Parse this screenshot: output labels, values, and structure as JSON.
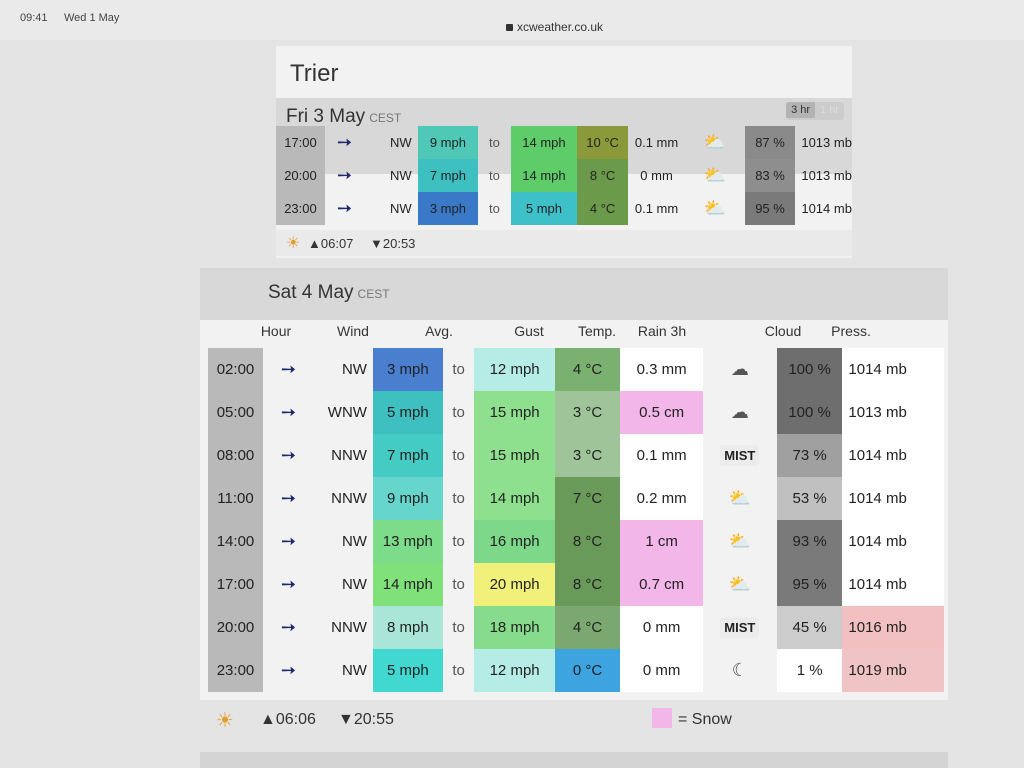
{
  "status": {
    "time": "09:41",
    "date": "Wed 1 May",
    "url": "xcweather.co.uk"
  },
  "city": "Trier",
  "day1": {
    "title": "Fri 3 May",
    "tz": "CEST",
    "toggle": [
      "3 hr",
      "1 hr"
    ],
    "rows": [
      {
        "hour": "17:00",
        "dir": "NW",
        "avg": "9 mph",
        "to": "to",
        "gust": "14 mph",
        "temp": "10 °C",
        "rain": "0.1 mm",
        "icon": "cloud-sun-icon",
        "cloud": "87 %",
        "press": "1013 mb"
      },
      {
        "hour": "20:00",
        "dir": "NW",
        "avg": "7 mph",
        "to": "to",
        "gust": "14 mph",
        "temp": "8 °C",
        "rain": "0 mm",
        "icon": "cloud-sun-icon",
        "cloud": "83 %",
        "press": "1013 mb"
      },
      {
        "hour": "23:00",
        "dir": "NW",
        "avg": "3 mph",
        "to": "to",
        "gust": "5 mph",
        "temp": "4 °C",
        "rain": "0.1 mm",
        "icon": "cloud-sun-icon",
        "cloud": "95 %",
        "press": "1014 mb"
      }
    ],
    "sunrise": "▲06:07",
    "sunset": "▼20:53"
  },
  "day2": {
    "title": "Sat 4 May",
    "tz": "CEST",
    "headers": {
      "hour": "Hour",
      "wind": "Wind",
      "avg": "Avg.",
      "gust": "Gust",
      "temp": "Temp.",
      "rain": "Rain 3h",
      "cloud": "Cloud",
      "press": "Press."
    },
    "rows": [
      {
        "hour": "02:00",
        "dir": "NW",
        "avg": "3 mph",
        "to": "to",
        "gust": "12 mph",
        "temp": "4 °C",
        "rain": "0.3 mm",
        "icon": "cloud-icon",
        "cloud": "100 %",
        "press": "1014 mb"
      },
      {
        "hour": "05:00",
        "dir": "WNW",
        "avg": "5 mph",
        "to": "to",
        "gust": "15 mph",
        "temp": "3 °C",
        "rain": "0.5 cm",
        "icon": "cloud-snow-icon",
        "cloud": "100 %",
        "press": "1013 mb"
      },
      {
        "hour": "08:00",
        "dir": "NNW",
        "avg": "7 mph",
        "to": "to",
        "gust": "15 mph",
        "temp": "3 °C",
        "rain": "0.1 mm",
        "icon": "mist-icon",
        "mist": "MIST",
        "cloud": "73 %",
        "press": "1014 mb"
      },
      {
        "hour": "11:00",
        "dir": "NNW",
        "avg": "9 mph",
        "to": "to",
        "gust": "14 mph",
        "temp": "7 °C",
        "rain": "0.2 mm",
        "icon": "cloud-sun-icon",
        "cloud": "53 %",
        "press": "1014 mb"
      },
      {
        "hour": "14:00",
        "dir": "NW",
        "avg": "13 mph",
        "to": "to",
        "gust": "16 mph",
        "temp": "8 °C",
        "rain": "1 cm",
        "icon": "sun-cloud-snow-icon",
        "cloud": "93 %",
        "press": "1014 mb"
      },
      {
        "hour": "17:00",
        "dir": "NW",
        "avg": "14 mph",
        "to": "to",
        "gust": "20 mph",
        "temp": "8 °C",
        "rain": "0.7 cm",
        "icon": "sun-cloud-snow-icon",
        "cloud": "95 %",
        "press": "1014 mb"
      },
      {
        "hour": "20:00",
        "dir": "NNW",
        "avg": "8 mph",
        "to": "to",
        "gust": "18 mph",
        "temp": "4 °C",
        "rain": "0 mm",
        "icon": "mist-icon",
        "mist": "MIST",
        "cloud": "45 %",
        "press": "1016 mb"
      },
      {
        "hour": "23:00",
        "dir": "NW",
        "avg": "5 mph",
        "to": "to",
        "gust": "12 mph",
        "temp": "0 °C",
        "rain": "0 mm",
        "icon": "moon-icon",
        "cloud": "1 %",
        "press": "1019 mb"
      }
    ],
    "sunrise": "▲06:06",
    "sunset": "▼20:55",
    "legend": "= Snow"
  },
  "colors": {
    "d1_avg": [
      "#4fc8b8",
      "#3fc0c0",
      "#3a78c8"
    ],
    "d1_gust": [
      "#5fcc6a",
      "#5fcc6a",
      "#3ec0c8"
    ],
    "d1_temp": [
      "#8a9a3a",
      "#6a9a4a",
      "#6a9a4a"
    ],
    "d1_cloud": [
      "#8a8a8a",
      "#8e8e8e",
      "#7a7a7a"
    ],
    "d2_avg": [
      "#4a7fd0",
      "#3fc0c0",
      "#44ccc4",
      "#66d6cc",
      "#7cdc8a",
      "#80e07a",
      "#a9e6d8",
      "#40d8d0"
    ],
    "d2_gust": [
      "#b6ece6",
      "#8ee08e",
      "#8ee08e",
      "#8ee08e",
      "#7ed88a",
      "#f0f07a",
      "#86dc8c",
      "#b6ece6"
    ],
    "d2_temp": [
      "#7ab070",
      "#9fc49a",
      "#9fc49a",
      "#6a9a5a",
      "#6a9a5a",
      "#6a9a5a",
      "#7aa870",
      "#3ea4e0"
    ],
    "d2_rain": [
      "#ffffff",
      "#f2b6e8",
      "#ffffff",
      "#ffffff",
      "#f2b6e8",
      "#f2b6e8",
      "#ffffff",
      "#ffffff"
    ],
    "d2_cloud": [
      "#6e6e6e",
      "#6e6e6e",
      "#a0a0a0",
      "#c0c0c0",
      "#7a7a7a",
      "#7a7a7a",
      "#cccccc",
      "#ffffff"
    ],
    "d2_press": [
      "#ffffff",
      "#ffffff",
      "#ffffff",
      "#ffffff",
      "#ffffff",
      "#ffffff",
      "#f2c0c0",
      "#f0c4c4"
    ],
    "snow": "#f2b6e8"
  }
}
